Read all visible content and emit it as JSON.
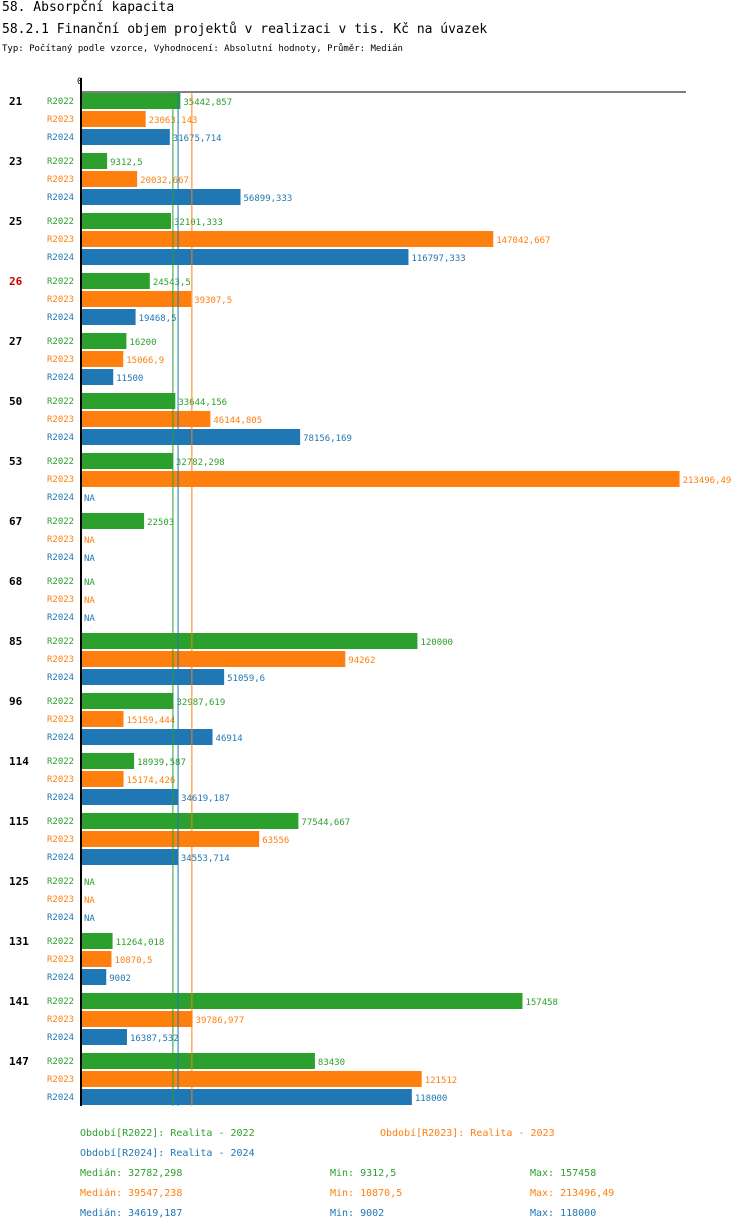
{
  "header": {
    "title": "58. Absorpční kapacita",
    "subtitle": "58.2.1 Finanční objem projektů v realizaci v tis. Kč na úvazek",
    "meta": "Typ: Počítaný podle vzorce, Vyhodnocení: Absolutní hodnoty, Průměr: Medián"
  },
  "colors": {
    "R2022": "#2ca02c",
    "R2023": "#ff7f0e",
    "R2024": "#1f77b4",
    "highlight": "#cc0000"
  },
  "chart_data": {
    "type": "bar",
    "orientation": "horizontal",
    "axis_zero_label": "0",
    "xlim": [
      0,
      214000
    ],
    "series_names": [
      "R2022",
      "R2023",
      "R2024"
    ],
    "categories": [
      "21",
      "23",
      "25",
      "26",
      "27",
      "50",
      "53",
      "67",
      "68",
      "85",
      "96",
      "114",
      "115",
      "125",
      "131",
      "141",
      "147"
    ],
    "highlighted_category": "26",
    "series": [
      {
        "name": "R2022",
        "values": [
          35442.857,
          9312.5,
          32101.333,
          24543.5,
          16200,
          33644.156,
          32782.298,
          22503,
          null,
          120000,
          32987.619,
          18939.587,
          77544.667,
          null,
          11264.018,
          157458,
          83430
        ],
        "labels": [
          "35442,857",
          "9312,5",
          "32101,333",
          "24543,5",
          "16200",
          "33644,156",
          "32782,298",
          "22503",
          "NA",
          "120000",
          "32987,619",
          "18939,587",
          "77544,667",
          "NA",
          "11264,018",
          "157458",
          "83430"
        ]
      },
      {
        "name": "R2023",
        "values": [
          23063.143,
          20032.667,
          147042.667,
          39307.5,
          15066.9,
          46144.805,
          213496.49,
          null,
          null,
          94262,
          15159.444,
          15174.426,
          63556,
          null,
          10870.5,
          39786.977,
          121512
        ],
        "labels": [
          "23063,143",
          "20032,667",
          "147042,667",
          "39307,5",
          "15066,9",
          "46144,805",
          "213496,49",
          "NA",
          "NA",
          "94262",
          "15159,444",
          "15174,426",
          "63556",
          "NA",
          "10870,5",
          "39786,977",
          "121512"
        ]
      },
      {
        "name": "R2024",
        "values": [
          31675.714,
          56899.333,
          116797.333,
          19468.5,
          11500,
          78156.169,
          null,
          null,
          null,
          51059.6,
          46914,
          34619.187,
          34553.714,
          null,
          9002,
          16387.532,
          118000
        ],
        "labels": [
          "31675,714",
          "56899,333",
          "116797,333",
          "19468,5",
          "11500",
          "78156,169",
          "NA",
          "NA",
          "NA",
          "51059,6",
          "46914",
          "34619,187",
          "34553,714",
          "NA",
          "9002",
          "16387,532",
          "118000"
        ]
      }
    ],
    "reference_lines": [
      {
        "series": "R2022",
        "value": 32782.298
      },
      {
        "series": "R2023",
        "value": 39547.238
      },
      {
        "series": "R2024",
        "value": 34619.187
      }
    ]
  },
  "legend": {
    "r2022": "Období[R2022]: Realita - 2022",
    "r2023": "Období[R2023]: Realita - 2023",
    "r2024": "Období[R2024]: Realita - 2024"
  },
  "stats": {
    "r2022": {
      "median": "Medián: 32782,298",
      "min": "Min: 9312,5",
      "max": "Max: 157458"
    },
    "r2023": {
      "median": "Medián: 39547,238",
      "min": "Min: 10870,5",
      "max": "Max: 213496,49"
    },
    "r2024": {
      "median": "Medián: 34619,187",
      "min": "Min: 9002",
      "max": "Max: 118000"
    }
  }
}
